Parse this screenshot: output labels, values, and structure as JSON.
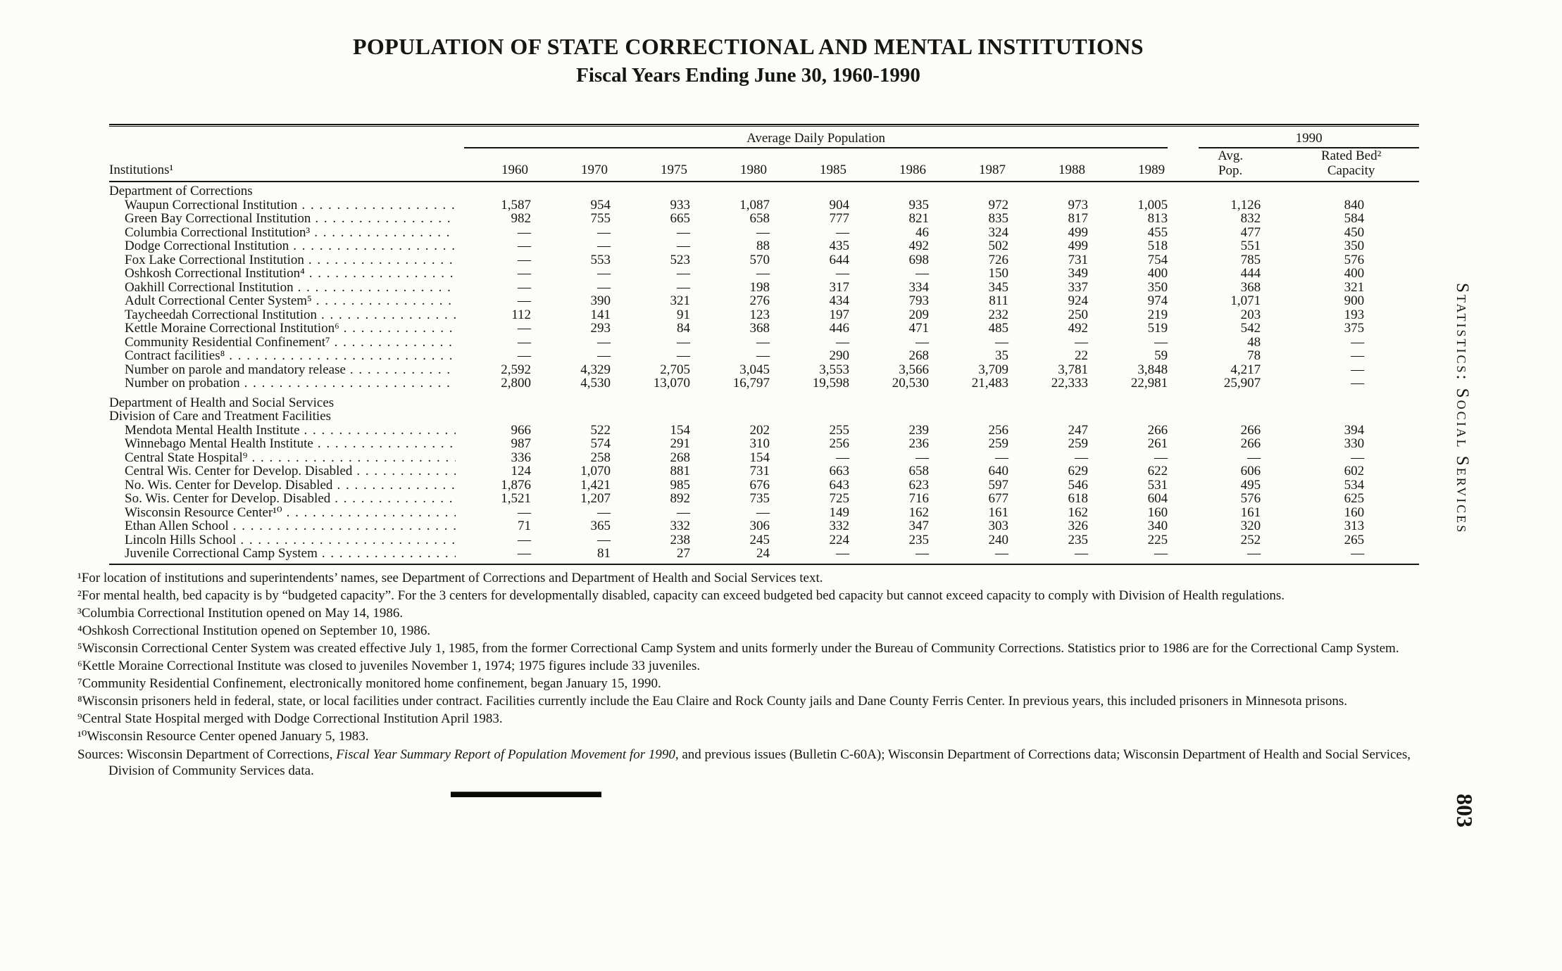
{
  "page": {
    "title": "POPULATION OF STATE CORRECTIONAL AND MENTAL INSTITUTIONS",
    "subtitle": "Fiscal Years Ending June 30, 1960-1990",
    "side_label": "Statistics: Social Services",
    "page_number": "803"
  },
  "table": {
    "span_headers": {
      "average_daily_population": "Average Daily Population",
      "year_1990": "1990"
    },
    "institutions_header": "Institutions¹",
    "year_columns": [
      "1960",
      "1970",
      "1975",
      "1980",
      "1985",
      "1986",
      "1987",
      "1988",
      "1989"
    ],
    "col_avg_pop": "Avg.\nPop.",
    "col_rated_bed": "Rated Bed²\nCapacity",
    "sections": [
      {
        "headers": [
          "Department of Corrections"
        ],
        "rows": [
          {
            "label": "Waupun Correctional Institution",
            "values": [
              "1,587",
              "954",
              "933",
              "1,087",
              "904",
              "935",
              "972",
              "973",
              "1,005",
              "1,126",
              "840"
            ]
          },
          {
            "label": "Green Bay Correctional Institution",
            "values": [
              "982",
              "755",
              "665",
              "658",
              "777",
              "821",
              "835",
              "817",
              "813",
              "832",
              "584"
            ]
          },
          {
            "label": "Columbia Correctional Institution³",
            "values": [
              "—",
              "—",
              "—",
              "—",
              "—",
              "46",
              "324",
              "499",
              "455",
              "477",
              "450"
            ]
          },
          {
            "label": "Dodge Correctional Institution",
            "values": [
              "—",
              "—",
              "—",
              "88",
              "435",
              "492",
              "502",
              "499",
              "518",
              "551",
              "350"
            ]
          },
          {
            "label": "Fox Lake Correctional Institution",
            "values": [
              "—",
              "553",
              "523",
              "570",
              "644",
              "698",
              "726",
              "731",
              "754",
              "785",
              "576"
            ]
          },
          {
            "label": "Oshkosh Correctional Institution⁴",
            "values": [
              "—",
              "—",
              "—",
              "—",
              "—",
              "—",
              "150",
              "349",
              "400",
              "444",
              "400"
            ]
          },
          {
            "label": "Oakhill Correctional Institution",
            "values": [
              "—",
              "—",
              "—",
              "198",
              "317",
              "334",
              "345",
              "337",
              "350",
              "368",
              "321"
            ]
          },
          {
            "label": "Adult Correctional Center System⁵",
            "values": [
              "—",
              "390",
              "321",
              "276",
              "434",
              "793",
              "811",
              "924",
              "974",
              "1,071",
              "900"
            ]
          },
          {
            "label": "Taycheedah Correctional Institution",
            "values": [
              "112",
              "141",
              "91",
              "123",
              "197",
              "209",
              "232",
              "250",
              "219",
              "203",
              "193"
            ]
          },
          {
            "label": "Kettle Moraine Correctional Institution⁶",
            "values": [
              "—",
              "293",
              "84",
              "368",
              "446",
              "471",
              "485",
              "492",
              "519",
              "542",
              "375"
            ]
          },
          {
            "label": "Community Residential Confinement⁷",
            "values": [
              "—",
              "—",
              "—",
              "—",
              "—",
              "—",
              "—",
              "—",
              "—",
              "48",
              "—"
            ]
          },
          {
            "label": "Contract facilities⁸",
            "values": [
              "—",
              "—",
              "—",
              "—",
              "290",
              "268",
              "35",
              "22",
              "59",
              "78",
              "—"
            ]
          },
          {
            "label": "Number on parole and mandatory release",
            "values": [
              "2,592",
              "4,329",
              "2,705",
              "3,045",
              "3,553",
              "3,566",
              "3,709",
              "3,781",
              "3,848",
              "4,217",
              "—"
            ]
          },
          {
            "label": "Number on probation",
            "values": [
              "2,800",
              "4,530",
              "13,070",
              "16,797",
              "19,598",
              "20,530",
              "21,483",
              "22,333",
              "22,981",
              "25,907",
              "—"
            ]
          }
        ]
      },
      {
        "headers": [
          "Department of Health and Social Services",
          "Division of Care and Treatment Facilities"
        ],
        "rows": [
          {
            "label": "Mendota Mental Health Institute",
            "values": [
              "966",
              "522",
              "154",
              "202",
              "255",
              "239",
              "256",
              "247",
              "266",
              "266",
              "394"
            ]
          },
          {
            "label": "Winnebago Mental Health Institute",
            "values": [
              "987",
              "574",
              "291",
              "310",
              "256",
              "236",
              "259",
              "259",
              "261",
              "266",
              "330"
            ]
          },
          {
            "label": "Central State Hospital⁹",
            "values": [
              "336",
              "258",
              "268",
              "154",
              "—",
              "—",
              "—",
              "—",
              "—",
              "—",
              "—"
            ]
          },
          {
            "label": "Central Wis. Center for Develop. Disabled",
            "values": [
              "124",
              "1,070",
              "881",
              "731",
              "663",
              "658",
              "640",
              "629",
              "622",
              "606",
              "602"
            ]
          },
          {
            "label": "No. Wis. Center for Develop. Disabled",
            "values": [
              "1,876",
              "1,421",
              "985",
              "676",
              "643",
              "623",
              "597",
              "546",
              "531",
              "495",
              "534"
            ]
          },
          {
            "label": "So. Wis. Center for Develop. Disabled",
            "values": [
              "1,521",
              "1,207",
              "892",
              "735",
              "725",
              "716",
              "677",
              "618",
              "604",
              "576",
              "625"
            ]
          },
          {
            "label": "Wisconsin Resource Center¹⁰",
            "values": [
              "—",
              "—",
              "—",
              "—",
              "149",
              "162",
              "161",
              "162",
              "160",
              "161",
              "160"
            ]
          },
          {
            "label": "Ethan Allen School",
            "values": [
              "71",
              "365",
              "332",
              "306",
              "332",
              "347",
              "303",
              "326",
              "340",
              "320",
              "313"
            ]
          },
          {
            "label": "Lincoln Hills School",
            "values": [
              "—",
              "—",
              "238",
              "245",
              "224",
              "235",
              "240",
              "235",
              "225",
              "252",
              "265"
            ]
          },
          {
            "label": "Juvenile Correctional Camp System",
            "values": [
              "—",
              "81",
              "27",
              "24",
              "—",
              "—",
              "—",
              "—",
              "—",
              "—",
              "—"
            ]
          }
        ]
      }
    ]
  },
  "footnotes": [
    "¹For location of institutions and superintendents’ names, see Department of Corrections and Department of Health and Social Services text.",
    "²For mental health, bed capacity is by “budgeted capacity”.  For the 3 centers for developmentally disabled, capacity can exceed budgeted bed capacity but cannot exceed capacity to comply with Division of Health regulations.",
    "³Columbia Correctional Institution opened on May 14, 1986.",
    "⁴Oshkosh Correctional Institution opened on September 10, 1986.",
    "⁵Wisconsin Correctional Center System was created effective July 1, 1985, from the former Correctional Camp System and units formerly under the Bureau of Community Corrections.  Statistics prior to 1986 are for the Correctional Camp System.",
    "⁶Kettle Moraine Correctional Institute was closed to juveniles November 1, 1974; 1975 figures include 33 juveniles.",
    "⁷Community Residential Confinement, electronically monitored home confinement, began January 15, 1990.",
    "⁸Wisconsin prisoners held in federal, state, or local facilities under contract.  Facilities currently include the Eau Claire and Rock County jails and Dane County Ferris Center.  In previous years, this included prisoners in Minnesota prisons.",
    "⁹Central State Hospital merged with Dodge Correctional Institution April 1983.",
    "¹⁰Wisconsin Resource Center opened January 5, 1983."
  ],
  "sources": {
    "prefix": "Sources: Wisconsin Department of Corrections, ",
    "italic": "Fiscal Year Summary Report of Population Movement for 1990",
    "suffix": ", and previous issues (Bulletin C-60A); Wisconsin Department of Corrections data; Wisconsin Department of Health and Social Services, Division of Community Services data."
  }
}
